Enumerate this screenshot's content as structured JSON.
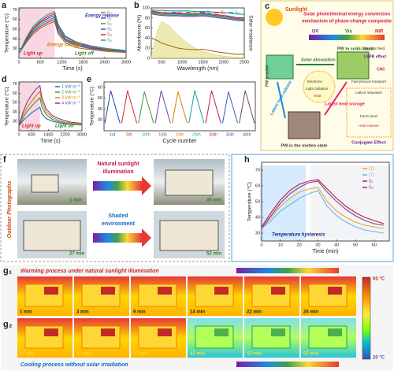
{
  "chart_data": [
    {
      "type": "line",
      "label": "a",
      "x_label": "Time (s)",
      "y_label": "Temperature (°C)",
      "xlim": [
        0,
        3000
      ],
      "xticks": [
        0,
        600,
        1200,
        1800,
        2400,
        3000
      ],
      "ylim": [
        20,
        72
      ],
      "yticks": [
        30,
        40,
        50,
        60,
        70
      ],
      "light_up_range": [
        0,
        1000
      ],
      "x": [
        0,
        200,
        400,
        600,
        800,
        1000,
        1100,
        1300,
        1600,
        2000,
        2500,
        3000
      ],
      "series": [
        {
          "name": "S₀",
          "color": "#b5651d",
          "values": [
            25,
            36,
            45,
            51,
            55,
            58,
            45,
            36,
            31,
            29,
            27,
            26
          ]
        },
        {
          "name": "S₁",
          "color": "#7b3fa0",
          "values": [
            25,
            37,
            47,
            53,
            57,
            60,
            47,
            38,
            33,
            30,
            28,
            27
          ]
        },
        {
          "name": "S₂",
          "color": "#3a9a3a",
          "values": [
            25,
            38,
            48,
            55,
            59,
            62,
            49,
            39,
            34,
            31,
            28,
            27
          ]
        },
        {
          "name": "S₃",
          "color": "#2d5fc4",
          "values": [
            25,
            39,
            50,
            57,
            61,
            64,
            51,
            40,
            35,
            31,
            29,
            27
          ]
        },
        {
          "name": "S₄",
          "color": "#d62728",
          "values": [
            25,
            40,
            51,
            58,
            63,
            66,
            53,
            42,
            36,
            32,
            29,
            28
          ]
        },
        {
          "name": "S₅",
          "color": "#17a2a2",
          "values": [
            25,
            41,
            53,
            60,
            65,
            68,
            55,
            43,
            37,
            33,
            30,
            28
          ]
        }
      ],
      "annotations": [
        {
          "text": "Energy release",
          "color": "#1f3fbf"
        },
        {
          "text": "Energy storage",
          "color": "#e07b00"
        },
        {
          "text": "Light up",
          "color": "#d62728"
        },
        {
          "text": "Light off",
          "color": "#2a8a2a"
        }
      ]
    },
    {
      "type": "line",
      "label": "b",
      "x_label": "Wavelength (nm)",
      "y_label": "Absorbance (%)",
      "y2_label": "Solar irradiance",
      "xlim": [
        250,
        2500
      ],
      "xticks": [
        500,
        1000,
        1500,
        2000,
        2500
      ],
      "ylim": [
        0,
        100
      ],
      "yticks": [
        0,
        20,
        40,
        60,
        80,
        100
      ],
      "y2lim": [
        0,
        2.2
      ],
      "x": [
        250,
        400,
        500,
        700,
        900,
        1100,
        1300,
        1500,
        1700,
        1900,
        2100,
        2300,
        2500
      ],
      "series": [
        {
          "name": "Solar irradiance",
          "axis": "y2",
          "color": "#e8e6a0",
          "values": [
            0.1,
            1.2,
            1.6,
            1.4,
            1.0,
            0.7,
            0.45,
            0.3,
            0.2,
            0.12,
            0.08,
            0.05,
            0.03
          ]
        },
        {
          "name": "S₀",
          "color": "#b5651d",
          "values": [
            40,
            35,
            30,
            25,
            20,
            18,
            17,
            18,
            15,
            12,
            10,
            8,
            8
          ]
        },
        {
          "name": "S₁",
          "color": "#7b3fa0",
          "values": [
            88,
            86,
            85,
            84,
            84,
            83,
            83,
            84,
            82,
            80,
            78,
            75,
            74
          ]
        },
        {
          "name": "S₂",
          "color": "#3a9a3a",
          "values": [
            90,
            88,
            87,
            86,
            86,
            85,
            85,
            86,
            84,
            82,
            80,
            77,
            76
          ]
        },
        {
          "name": "S₃",
          "color": "#2d5fc4",
          "values": [
            92,
            90,
            89,
            88,
            88,
            87,
            87,
            88,
            86,
            84,
            82,
            79,
            78
          ]
        },
        {
          "name": "S₄",
          "color": "#d62728",
          "values": [
            94,
            92,
            91,
            90,
            90,
            89,
            89,
            90,
            88,
            86,
            84,
            81,
            80
          ]
        },
        {
          "name": "S₅",
          "color": "#17a2a2",
          "values": [
            96,
            95,
            95,
            94,
            94,
            94,
            93,
            93,
            92,
            91,
            90,
            88,
            87
          ]
        }
      ],
      "annotations": []
    },
    {
      "type": "line",
      "label": "d",
      "x_label": "Time (s)",
      "y_label": "Temperature (°C)",
      "xlim": [
        0,
        3000
      ],
      "xticks": [
        0,
        600,
        1400,
        2200,
        3000
      ],
      "ylim": [
        20,
        72
      ],
      "yticks": [
        30,
        40,
        50,
        60,
        70
      ],
      "light_up_range": [
        0,
        1000
      ],
      "x": [
        0,
        200,
        400,
        600,
        800,
        1000,
        1100,
        1300,
        1600,
        2000,
        2500,
        3000
      ],
      "series": [
        {
          "name": "1 kW m⁻²",
          "color": "#2d5fc4",
          "values": [
            25,
            31,
            35,
            39,
            42,
            45,
            38,
            33,
            30,
            28,
            27,
            26
          ]
        },
        {
          "name": "2 kW m⁻²",
          "color": "#3a9a3a",
          "values": [
            25,
            34,
            41,
            46,
            51,
            55,
            45,
            37,
            32,
            29,
            27,
            26
          ]
        },
        {
          "name": "3 kW m⁻²",
          "color": "#e07b00",
          "values": [
            25,
            37,
            45,
            51,
            57,
            62,
            50,
            40,
            34,
            30,
            28,
            27
          ]
        },
        {
          "name": "4 kW m⁻²",
          "color": "#7b3fa0",
          "values": [
            25,
            40,
            51,
            58,
            64,
            68,
            55,
            43,
            36,
            32,
            29,
            28
          ]
        }
      ],
      "annotations": [
        {
          "text": "Light up",
          "color": "#d62728"
        },
        {
          "text": "Light off",
          "color": "#2a8a2a"
        }
      ]
    },
    {
      "type": "cycle",
      "label": "e",
      "x_label": "Cycle number",
      "y_label": "Temperature (°C)",
      "ylim": [
        20,
        65
      ],
      "yticks": [
        30,
        40,
        50,
        60
      ],
      "categories": [
        "1st",
        "5th",
        "10th",
        "15th",
        "20th",
        "25th",
        "30th",
        "35th",
        "40th"
      ],
      "values": [
        57,
        57,
        56,
        57,
        56,
        57,
        57,
        56,
        57
      ],
      "min_values": [
        27,
        27,
        27,
        27,
        27,
        27,
        27,
        27,
        27
      ],
      "colors": [
        "#1f3fbf",
        "#d62728",
        "#3a9a3a",
        "#7b3fa0",
        "#e07b00",
        "#17a2a2",
        "#c2185b",
        "#2d5fc4",
        "#6d4c41"
      ],
      "annotations": []
    },
    {
      "type": "line",
      "label": "h",
      "x_label": "Time (min)",
      "y_label": "Temperature (°C)",
      "xlim": [
        0,
        68
      ],
      "xticks": [
        0,
        10,
        20,
        30,
        40,
        50,
        60
      ],
      "ylim": [
        25,
        75
      ],
      "yticks": [
        30,
        40,
        50,
        60,
        70
      ],
      "x": [
        0,
        5,
        10,
        15,
        20,
        25,
        30,
        35,
        40,
        45,
        50,
        55,
        60,
        65
      ],
      "series": [
        {
          "name": "(1)",
          "color": "#f0a030",
          "values": [
            33,
            40,
            47,
            52,
            56,
            58,
            59,
            50,
            44,
            40,
            37,
            35,
            34,
            33
          ]
        },
        {
          "name": "(7)",
          "color": "#6ab4e8",
          "values": [
            33,
            38,
            44,
            48,
            52,
            55,
            57,
            47,
            41,
            37,
            34,
            32,
            31,
            30
          ]
        },
        {
          "name": "S₁",
          "color": "#c0182f",
          "values": [
            34,
            43,
            51,
            57,
            61,
            63,
            64,
            58,
            52,
            47,
            43,
            40,
            38,
            36
          ]
        },
        {
          "name": "S₃",
          "color": "#7b3fa0",
          "values": [
            33,
            41,
            49,
            55,
            59,
            62,
            63,
            56,
            50,
            45,
            41,
            38,
            36,
            35
          ]
        }
      ],
      "annotations": [
        {
          "text": "Temperature hysteresis",
          "color": "#1a237e"
        }
      ]
    }
  ],
  "panels": {
    "c": {
      "label": "c",
      "sunlight": "Sunlight",
      "title": [
        "Solar photothermal energy conversion",
        "mechanism of phase-change composite"
      ],
      "uv": "UV",
      "vis": "Vis",
      "nir": "NIR",
      "solar_absorption": "Solar absorption",
      "pw_solid_liquid": "PW in solid-liquid",
      "phonon": "Fast phonon transport",
      "pw_solid": "PW in solid",
      "light_radiation": "Light radiation",
      "electrons": "Electrons",
      "heat": "Heat",
      "latent_storage": "Latent heat storage",
      "latent_release": "Latent heat release",
      "pw_molten": "PW in the molten state",
      "lspr": "LSPR effect",
      "electron_field": "Electron field",
      "cnc": "CNC",
      "lattice": "Lattice relaxation",
      "fermi": "Fermi level",
      "heat_release": "Heat release",
      "conjugate": "Conjugate Effect"
    },
    "f": {
      "label": "f",
      "side": "Outdoor Photographs",
      "sun": [
        "Natural sunlight",
        "illumination"
      ],
      "shade": [
        "Shaded",
        "environment"
      ],
      "times": [
        "1 min",
        "26 min",
        "27 min",
        "52 min"
      ]
    },
    "g": {
      "g1_label": "g₁",
      "g2_label": "g₂",
      "g1_title": "Warming process under natural sunlight illumination",
      "g2_title": "Cooling process without solar irradiation",
      "g1_times": [
        "1 min",
        "3 min",
        "9 min",
        "14 min",
        "22 min",
        "26 min"
      ],
      "g2_times": [
        "27 min",
        "31 min",
        "37 min",
        "43 min",
        "53 min",
        "62 min"
      ],
      "scale_max": "65 °C",
      "scale_min": "20 °C"
    }
  }
}
